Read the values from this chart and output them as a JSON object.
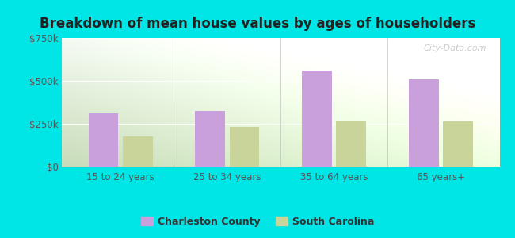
{
  "title": "Breakdown of mean house values by ages of householders",
  "categories": [
    "15 to 24 years",
    "25 to 34 years",
    "35 to 64 years",
    "65 years+"
  ],
  "charleston_values": [
    310000,
    325000,
    560000,
    510000
  ],
  "sc_values": [
    175000,
    230000,
    270000,
    265000
  ],
  "ylim": [
    0,
    750000
  ],
  "yticks": [
    0,
    250000,
    500000,
    750000
  ],
  "ytick_labels": [
    "$0",
    "$250k",
    "$500k",
    "$750k"
  ],
  "charleston_color": "#c9a0dc",
  "sc_color": "#c8d49a",
  "bar_width": 0.28,
  "legend_charleston": "Charleston County",
  "legend_sc": "South Carolina",
  "watermark": "City-Data.com",
  "bg_color": "#00e5e5",
  "title_fontsize": 12,
  "axis_color": "#aaaaaa",
  "tick_color": "#555555",
  "grad_top": "#f5f8f0",
  "grad_bottom": "#c8ddb8"
}
